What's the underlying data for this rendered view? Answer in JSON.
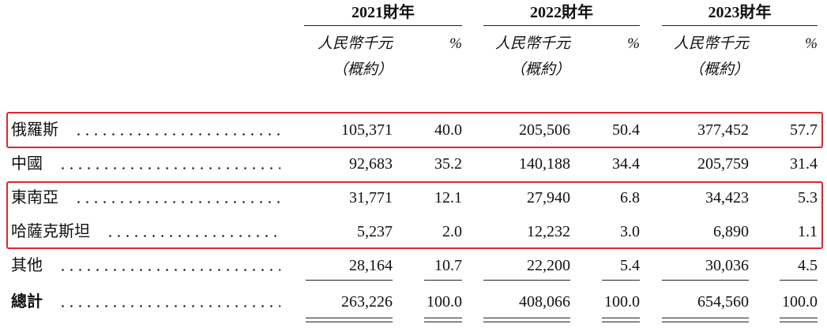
{
  "table": {
    "header": {
      "years": [
        "2021財年",
        "2022財年",
        "2023財年"
      ],
      "unit": "人民幣千元",
      "approx": "（概約）",
      "percent": "%"
    },
    "rows": [
      {
        "label": "俄羅斯",
        "cells": [
          "105,371",
          "40.0",
          "205,506",
          "50.4",
          "377,452",
          "57.7"
        ]
      },
      {
        "label": "中國",
        "cells": [
          "92,683",
          "35.2",
          "140,188",
          "34.4",
          "205,759",
          "31.4"
        ]
      },
      {
        "label": "東南亞",
        "cells": [
          "31,771",
          "12.1",
          "27,940",
          "6.8",
          "34,423",
          "5.3"
        ]
      },
      {
        "label": "哈薩克斯坦",
        "cells": [
          "5,237",
          "2.0",
          "12,232",
          "3.0",
          "6,890",
          "1.1"
        ]
      },
      {
        "label": "其他",
        "cells": [
          "28,164",
          "10.7",
          "22,200",
          "5.4",
          "30,036",
          "4.5"
        ]
      }
    ],
    "total": {
      "label": "總計",
      "cells": [
        "263,226",
        "100.0",
        "408,066",
        "100.0",
        "654,560",
        "100.0"
      ]
    }
  }
}
